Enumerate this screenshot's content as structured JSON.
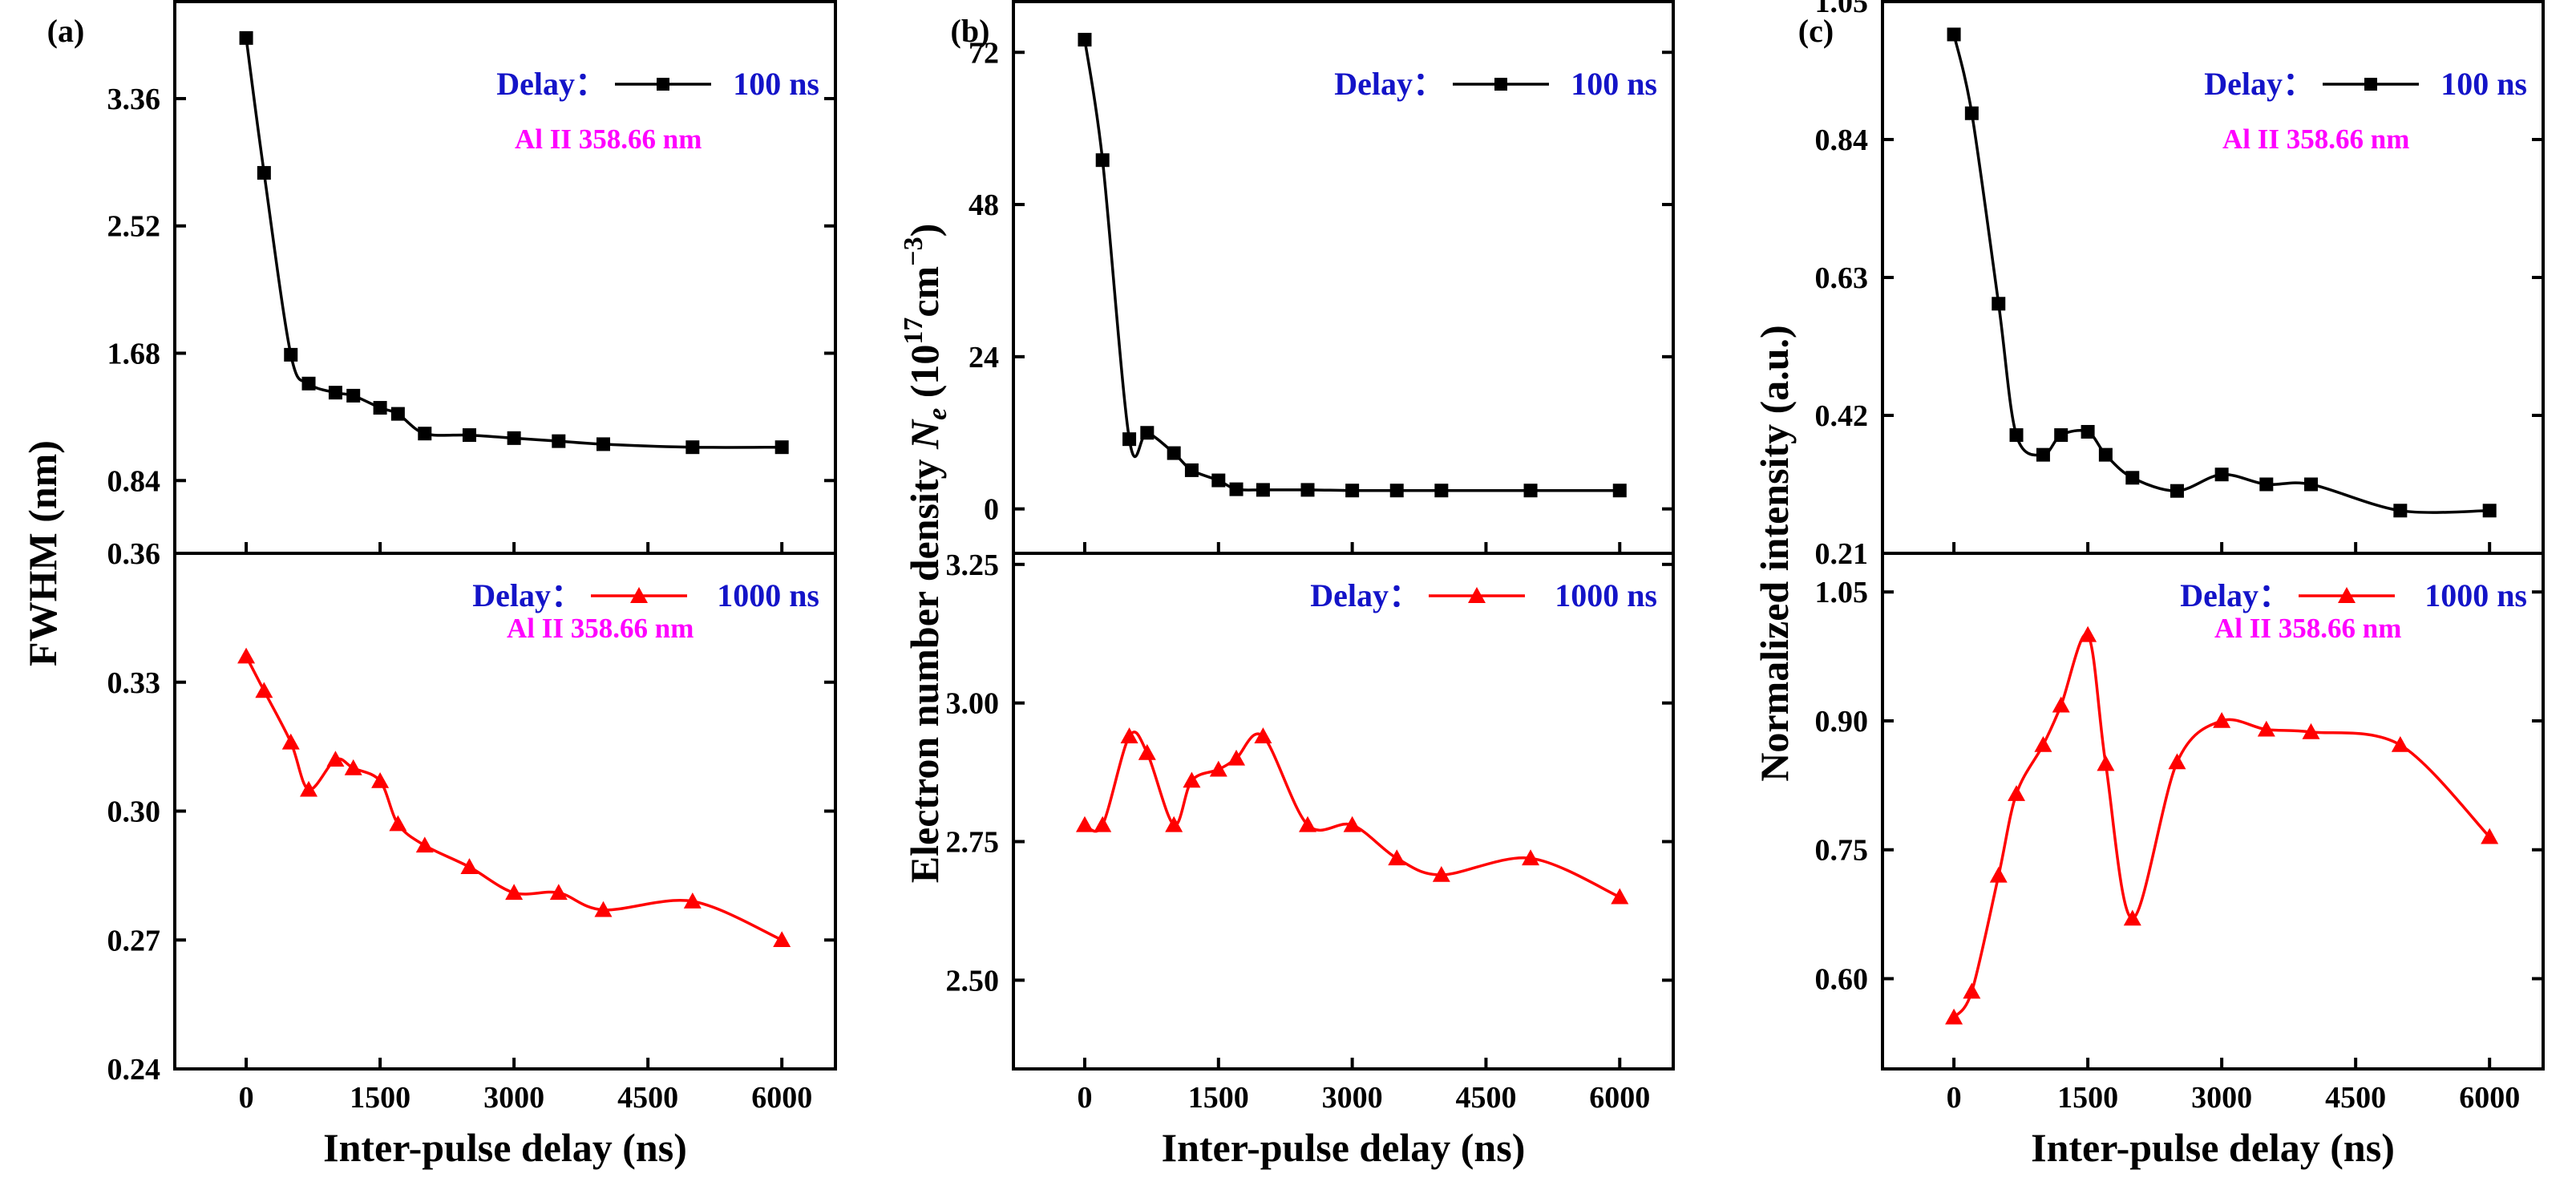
{
  "chart_data": [
    {
      "type": "line",
      "panel_label": "(a)",
      "xlabel": "Inter-pulse delay (ns)",
      "ylabel": "FWHM (nm)",
      "xlim": [
        -800,
        6600
      ],
      "xticks": [
        "0",
        "1500",
        "3000",
        "4500",
        "6000"
      ],
      "top": {
        "ylim": [
          0.36,
          4.0
        ],
        "yticks": [
          "0.84",
          "1.68",
          "2.52",
          "3.36"
        ],
        "legend_prefix": "Delay：",
        "legend_label": "100 ns",
        "annotation": "Al II 358.66 nm",
        "series": [
          {
            "name": "100 ns",
            "color": "#000000",
            "marker": "square",
            "x": [
              0,
              200,
              500,
              700,
              1000,
              1200,
              1500,
              1700,
              2000,
              2500,
              3000,
              3500,
              4000,
              5000,
              6000
            ],
            "y": [
              3.76,
              2.87,
              1.67,
              1.48,
              1.42,
              1.4,
              1.32,
              1.28,
              1.15,
              1.14,
              1.12,
              1.1,
              1.08,
              1.06,
              1.06
            ]
          }
        ]
      },
      "bottom": {
        "ylim": [
          0.24,
          0.36
        ],
        "yticks": [
          "0.24",
          "0.27",
          "0.30",
          "0.33",
          "0.36"
        ],
        "legend_prefix": "Delay：",
        "legend_label": "1000 ns",
        "annotation": "Al II 358.66 nm",
        "series": [
          {
            "name": "1000 ns",
            "color": "#ff0000",
            "marker": "triangle",
            "x": [
              0,
              200,
              500,
              700,
              1000,
              1200,
              1500,
              1700,
              2000,
              2500,
              3000,
              3500,
              4000,
              5000,
              6000
            ],
            "y": [
              0.336,
              0.328,
              0.316,
              0.305,
              0.312,
              0.31,
              0.307,
              0.297,
              0.292,
              0.287,
              0.281,
              0.281,
              0.277,
              0.279,
              0.27
            ]
          }
        ]
      }
    },
    {
      "type": "line",
      "panel_label": "(b)",
      "xlabel": "Inter-pulse delay (ns)",
      "ylabel_main": "Electron number density ",
      "ylabel_symbol": "N",
      "ylabel_sub": "e",
      "ylabel_unit_open": " (10",
      "ylabel_exp": "17",
      "ylabel_unit_mid": "cm",
      "ylabel_exp2": "−3",
      "ylabel_close": ")",
      "xlim": [
        -800,
        6600
      ],
      "xticks": [
        "0",
        "1500",
        "3000",
        "4500",
        "6000"
      ],
      "top": {
        "ylim": [
          -7,
          80
        ],
        "yticks": [
          "0",
          "24",
          "48",
          "72"
        ],
        "legend_prefix": "Delay：",
        "legend_label": "100 ns",
        "series": [
          {
            "name": "100 ns",
            "color": "#000000",
            "marker": "square",
            "x": [
              0,
              200,
              500,
              700,
              1000,
              1200,
              1500,
              1700,
              2000,
              2500,
              3000,
              3500,
              4000,
              5000,
              6000
            ],
            "y": [
              74.0,
              55.0,
              11.0,
              12.0,
              8.8,
              6.1,
              4.5,
              3.1,
              3.0,
              3.0,
              2.9,
              2.9,
              2.9,
              2.9,
              2.9
            ]
          }
        ]
      },
      "bottom": {
        "ylim": [
          2.34,
          3.27
        ],
        "yticks": [
          "2.50",
          "2.75",
          "3.00",
          "3.25"
        ],
        "legend_prefix": "Delay：",
        "legend_label": "1000 ns",
        "series": [
          {
            "name": "1000 ns",
            "color": "#ff0000",
            "marker": "triangle",
            "x": [
              0,
              200,
              500,
              700,
              1000,
              1200,
              1500,
              1700,
              2000,
              2500,
              3000,
              3500,
              4000,
              5000,
              6000
            ],
            "y": [
              2.78,
              2.78,
              2.94,
              2.91,
              2.78,
              2.86,
              2.88,
              2.9,
              2.94,
              2.78,
              2.78,
              2.72,
              2.69,
              2.72,
              2.65
            ]
          }
        ]
      }
    },
    {
      "type": "line",
      "panel_label": "(c)",
      "xlabel": "Inter-pulse delay (ns)",
      "ylabel": "Normalized intensity (a.u.)",
      "xlim": [
        -800,
        6600
      ],
      "xticks": [
        "0",
        "1500",
        "3000",
        "4500",
        "6000"
      ],
      "top": {
        "ylim": [
          0.21,
          1.05
        ],
        "yticks": [
          "0.21",
          "0.42",
          "0.63",
          "0.84",
          "1.05"
        ],
        "legend_prefix": "Delay：",
        "legend_label": "100 ns",
        "annotation": "Al II 358.66 nm",
        "series": [
          {
            "name": "100 ns",
            "color": "#000000",
            "marker": "square",
            "x": [
              0,
              200,
              500,
              700,
              1000,
              1200,
              1500,
              1700,
              2000,
              2500,
              3000,
              3500,
              4000,
              5000,
              6000
            ],
            "y": [
              1.0,
              0.88,
              0.59,
              0.39,
              0.36,
              0.39,
              0.395,
              0.36,
              0.325,
              0.305,
              0.33,
              0.315,
              0.315,
              0.275,
              0.275
            ]
          }
        ]
      },
      "bottom": {
        "ylim": [
          0.495,
          1.095
        ],
        "yticks": [
          "0.60",
          "0.75",
          "0.90",
          "1.05"
        ],
        "legend_prefix": "Delay：",
        "legend_label": "1000 ns",
        "annotation": "Al II 358.66 nm",
        "series": [
          {
            "name": "1000 ns",
            "color": "#ff0000",
            "marker": "triangle",
            "x": [
              0,
              200,
              500,
              700,
              1000,
              1200,
              1500,
              1700,
              2000,
              2500,
              3000,
              3500,
              4000,
              5000,
              6000
            ],
            "y": [
              0.555,
              0.585,
              0.72,
              0.815,
              0.872,
              0.918,
              1.0,
              0.85,
              0.67,
              0.852,
              0.9,
              0.89,
              0.887,
              0.872,
              0.765
            ]
          }
        ]
      }
    }
  ]
}
